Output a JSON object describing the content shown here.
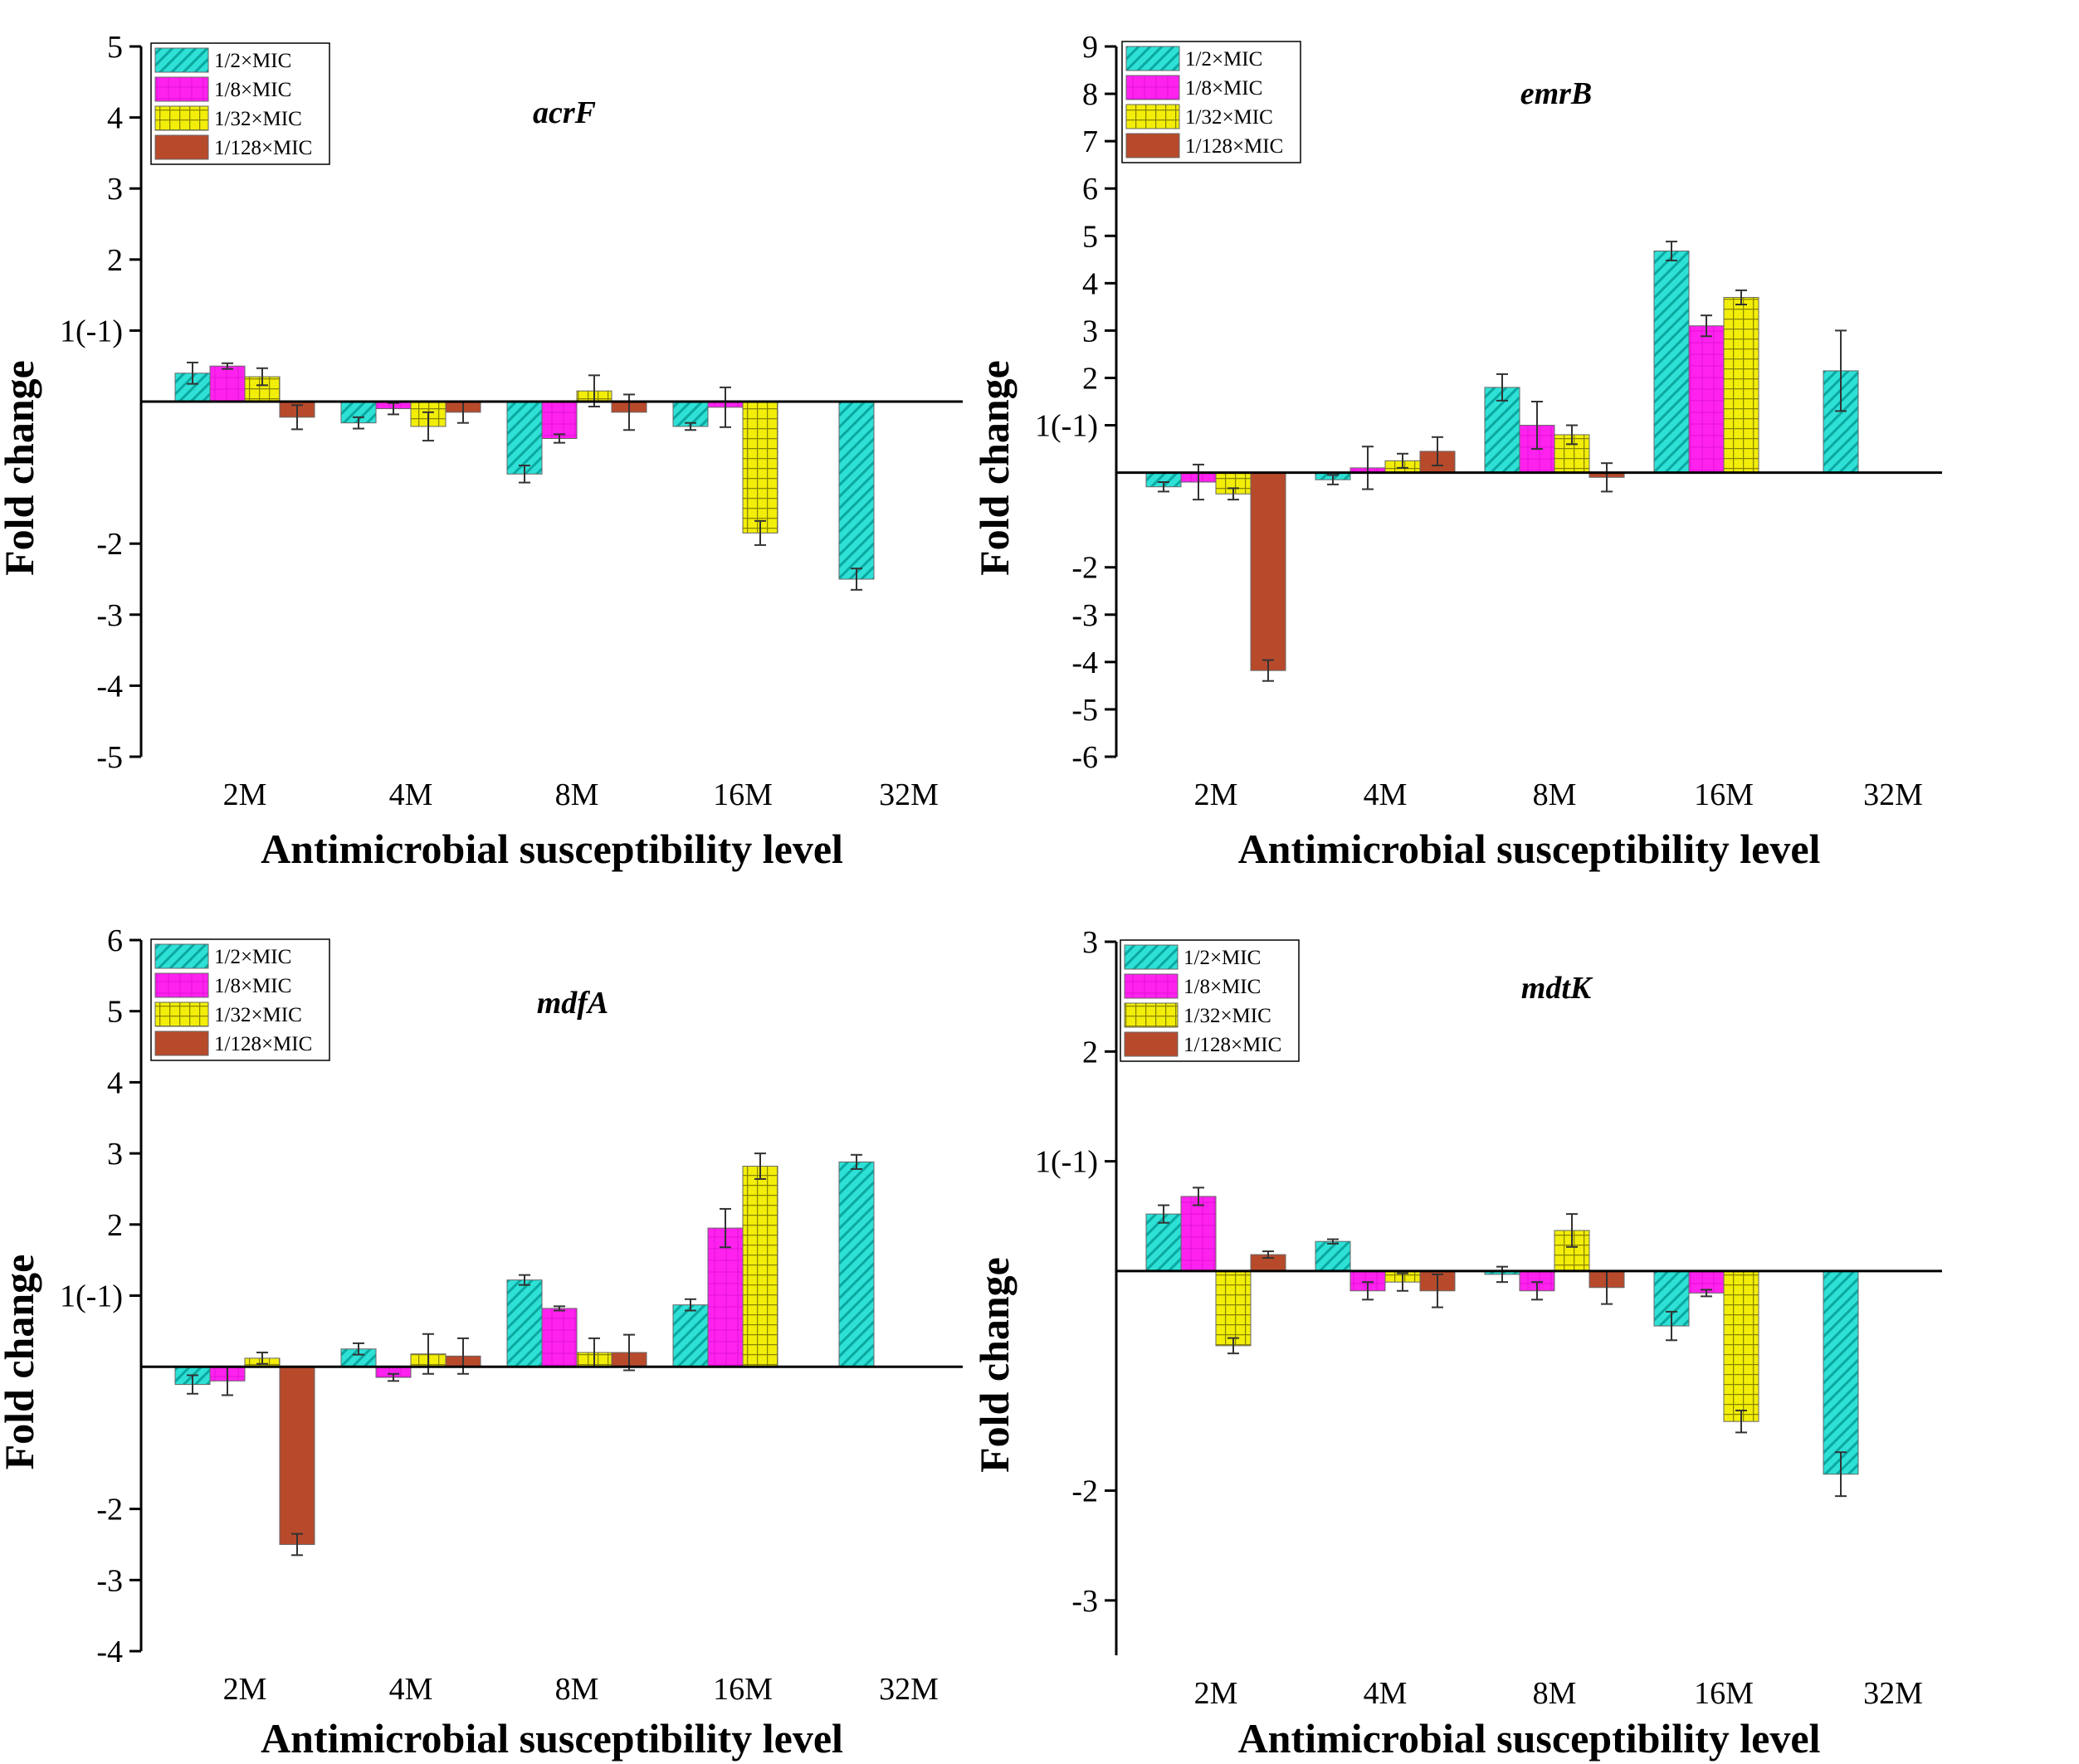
{
  "colors": {
    "s1": "#2ee0d6",
    "s2": "#ff22ee",
    "s3": "#f2ee0a",
    "s4": "#b84a2c",
    "s1_line": "#0aa89f",
    "s2_line": "#b0109e",
    "s3_line": "#9a9400",
    "s4_line": "#6a2212"
  },
  "chart_data": [
    {
      "type": "bar",
      "title": "acrF",
      "xlabel": "Antimicrobial susceptibility level",
      "ylabel": "Fold change",
      "categories": [
        "2M",
        "4M",
        "8M",
        "16M",
        "32M"
      ],
      "ylim": [
        -5,
        5
      ],
      "yticks": [
        5,
        4,
        3,
        2,
        1,
        -2,
        -3,
        -4,
        -5
      ],
      "yticklabels": [
        "5",
        "4",
        "3",
        "2",
        "1(-1)",
        "-2",
        "-3",
        "-4",
        "-5"
      ],
      "legend": [
        "1/2×MIC",
        "1/8×MIC",
        "1/32×MIC",
        "1/128×MIC"
      ],
      "series": [
        {
          "name": "1/2×MIC",
          "values": [
            0.4,
            -0.3,
            -1.02,
            -0.35,
            -2.5
          ],
          "errors": [
            0.15,
            0.08,
            0.12,
            0.05,
            0.15
          ]
        },
        {
          "name": "1/8×MIC",
          "values": [
            0.5,
            -0.1,
            -0.52,
            -0.08,
            null
          ],
          "errors": [
            0.04,
            0.08,
            0.06,
            0.28,
            null
          ]
        },
        {
          "name": "1/32×MIC",
          "values": [
            0.35,
            -0.35,
            0.15,
            -1.85,
            null
          ],
          "errors": [
            0.12,
            0.2,
            0.22,
            0.17,
            null
          ]
        },
        {
          "name": "1/128×MIC",
          "values": [
            -0.22,
            -0.15,
            -0.15,
            null,
            null
          ],
          "errors": [
            0.17,
            0.15,
            0.25,
            null,
            null
          ]
        }
      ]
    },
    {
      "type": "bar",
      "title": "emrB",
      "xlabel": "Antimicrobial susceptibility level",
      "ylabel": "Fold change",
      "categories": [
        "2M",
        "4M",
        "8M",
        "16M",
        "32M"
      ],
      "ylim": [
        -6,
        9
      ],
      "yticks": [
        9,
        8,
        7,
        6,
        5,
        4,
        3,
        2,
        1,
        -2,
        -3,
        -4,
        -5,
        -6
      ],
      "yticklabels": [
        "9",
        "8",
        "7",
        "6",
        "5",
        "4",
        "3",
        "2",
        "1(-1)",
        "-2",
        "-3",
        "-4",
        "-5",
        "-6"
      ],
      "legend": [
        "1/2×MIC",
        "1/8×MIC",
        "1/32×MIC",
        "1/128×MIC"
      ],
      "series": [
        {
          "name": "1/2×MIC",
          "values": [
            -0.3,
            -0.15,
            1.8,
            4.68,
            2.15
          ],
          "errors": [
            0.1,
            0.1,
            0.28,
            0.2,
            0.85
          ]
        },
        {
          "name": "1/8×MIC",
          "values": [
            -0.2,
            0.1,
            1.0,
            3.1,
            null
          ],
          "errors": [
            0.37,
            0.45,
            0.5,
            0.22,
            null
          ]
        },
        {
          "name": "1/32×MIC",
          "values": [
            -0.45,
            0.25,
            0.8,
            3.7,
            null
          ],
          "errors": [
            0.12,
            0.15,
            0.2,
            0.15,
            null
          ]
        },
        {
          "name": "1/128×MIC",
          "values": [
            -4.18,
            0.45,
            -0.1,
            null,
            null
          ],
          "errors": [
            0.22,
            0.3,
            0.3,
            null,
            null
          ]
        }
      ]
    },
    {
      "type": "bar",
      "title": "mdfA",
      "xlabel": "Antimicrobial susceptibility level",
      "ylabel": "Fold change",
      "categories": [
        "2M",
        "4M",
        "8M",
        "16M",
        "32M"
      ],
      "ylim": [
        -4,
        6
      ],
      "yticks": [
        6,
        5,
        4,
        3,
        2,
        1,
        -2,
        -3,
        -4
      ],
      "yticklabels": [
        "6",
        "5",
        "4",
        "3",
        "2",
        "1(-1)",
        "-2",
        "-3",
        "-4"
      ],
      "legend": [
        "1/2×MIC",
        "1/8×MIC",
        "1/32×MIC",
        "1/128×MIC"
      ],
      "series": [
        {
          "name": "1/2×MIC",
          "values": [
            -0.25,
            0.25,
            1.22,
            0.87,
            2.88
          ],
          "errors": [
            0.13,
            0.08,
            0.07,
            0.08,
            0.1
          ]
        },
        {
          "name": "1/8×MIC",
          "values": [
            -0.2,
            -0.15,
            0.82,
            1.95,
            null
          ],
          "errors": [
            0.2,
            0.05,
            0.03,
            0.27,
            null
          ]
        },
        {
          "name": "1/32×MIC",
          "values": [
            0.12,
            0.18,
            0.2,
            2.82,
            null
          ],
          "errors": [
            0.08,
            0.28,
            0.2,
            0.18,
            null
          ]
        },
        {
          "name": "1/128×MIC",
          "values": [
            -2.5,
            0.15,
            0.2,
            null,
            null
          ],
          "errors": [
            0.15,
            0.25,
            0.25,
            null,
            null
          ]
        }
      ]
    },
    {
      "type": "bar",
      "title": "mdtK",
      "xlabel": "Antimicrobial susceptibility level",
      "ylabel": "Fold change",
      "categories": [
        "2M",
        "4M",
        "8M",
        "16M",
        "32M"
      ],
      "ylim": [
        -3.5,
        3
      ],
      "yticks": [
        3,
        2,
        1,
        -2,
        -3
      ],
      "yticklabels": [
        "3",
        "2",
        "1(-1)",
        "-2",
        "-3"
      ],
      "legend": [
        "1/2×MIC",
        "1/8×MIC",
        "1/32×MIC",
        "1/128×MIC"
      ],
      "series": [
        {
          "name": "1/2×MIC",
          "values": [
            0.52,
            0.27,
            -0.03,
            -0.5,
            -1.85
          ],
          "errors": [
            0.08,
            0.02,
            0.07,
            0.13,
            0.2
          ]
        },
        {
          "name": "1/8×MIC",
          "values": [
            0.68,
            -0.18,
            -0.18,
            -0.2,
            null
          ],
          "errors": [
            0.08,
            0.08,
            0.08,
            0.03,
            null
          ]
        },
        {
          "name": "1/32×MIC",
          "values": [
            -0.68,
            -0.1,
            0.37,
            -1.37,
            null
          ],
          "errors": [
            0.07,
            0.08,
            0.15,
            0.1,
            null
          ]
        },
        {
          "name": "1/128×MIC",
          "values": [
            0.15,
            -0.18,
            -0.15,
            null,
            null
          ],
          "errors": [
            0.03,
            0.15,
            0.15,
            null,
            null
          ]
        }
      ]
    }
  ]
}
